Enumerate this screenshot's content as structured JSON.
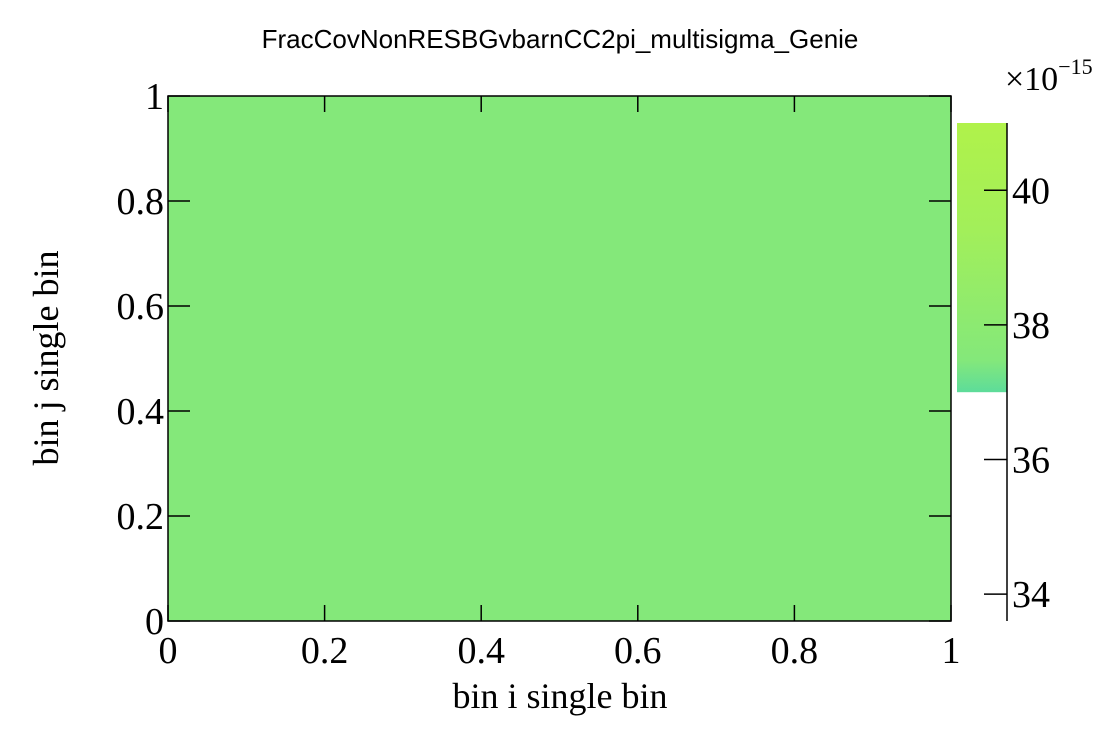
{
  "chart_data": {
    "type": "heatmap",
    "title": "FracCovNonRESBGvbarnCC2pi_multisigma_Genie",
    "xlabel": "bin i single bin",
    "ylabel": "bin j single bin",
    "xlim": [
      0,
      1
    ],
    "ylim": [
      0,
      1
    ],
    "x_ticks": [
      "0",
      "0.2",
      "0.4",
      "0.6",
      "0.8",
      "1"
    ],
    "y_ticks": [
      "0",
      "0.2",
      "0.4",
      "0.6",
      "0.8",
      "1"
    ],
    "cells": [
      {
        "x": [
          0,
          1
        ],
        "y": [
          0,
          1
        ],
        "value": 3.75e-14
      }
    ],
    "colorbar": {
      "multiplier": "×10",
      "exponent": "−15",
      "range": [
        33.6,
        41.0
      ],
      "ticks": [
        34,
        36,
        38,
        40
      ],
      "tick_labels": [
        "34",
        "36",
        "38",
        "40"
      ],
      "filled_from": 37.0,
      "colors": [
        "#5ddc9a",
        "#84e87a",
        "#a2ef5a",
        "#b0f24a"
      ]
    },
    "cell_color": "#84e87a"
  }
}
